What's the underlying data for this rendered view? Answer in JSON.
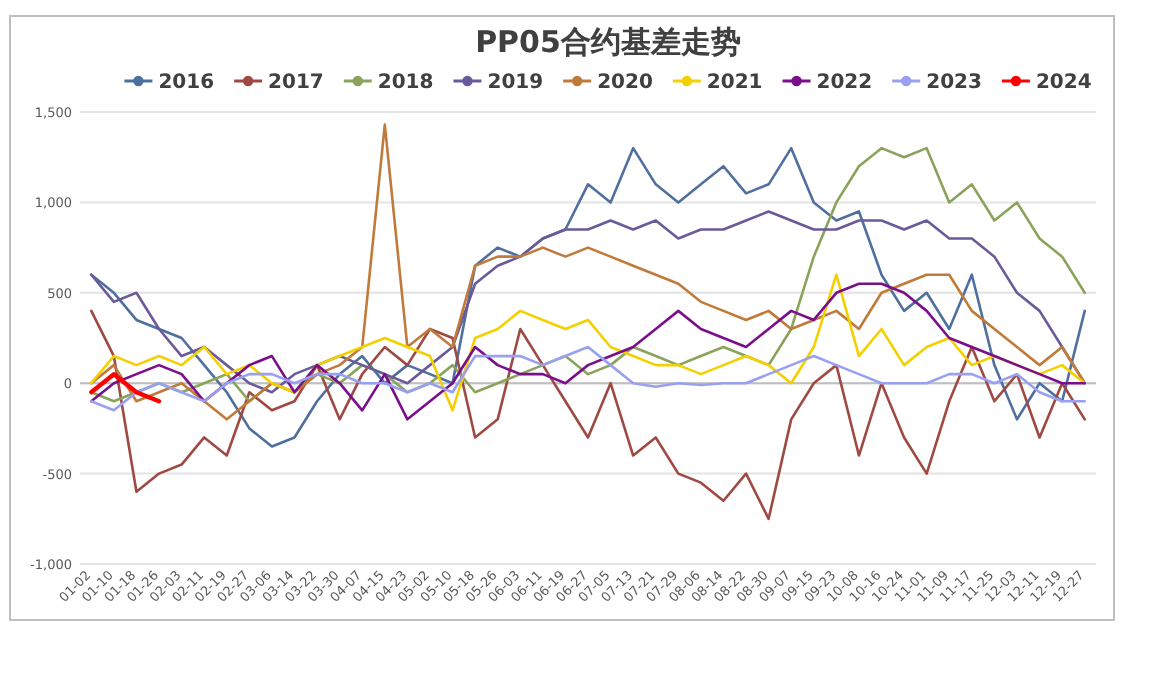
{
  "chart_data": {
    "type": "line",
    "title": "PP05合约基差走势",
    "legend": "top",
    "grid": "y",
    "marker": "none",
    "line_style": "solid",
    "categories": [
      "01-02",
      "01-10",
      "01-18",
      "01-26",
      "02-03",
      "02-11",
      "02-19",
      "02-27",
      "03-06",
      "03-14",
      "03-22",
      "03-30",
      "04-07",
      "04-15",
      "04-23",
      "05-02",
      "05-10",
      "05-18",
      "05-26",
      "06-03",
      "06-11",
      "06-19",
      "06-27",
      "07-05",
      "07-13",
      "07-21",
      "07-29",
      "08-06",
      "08-14",
      "08-22",
      "08-30",
      "09-07",
      "09-15",
      "09-23",
      "10-08",
      "10-16",
      "10-24",
      "11-01",
      "11-09",
      "11-17",
      "11-25",
      "12-03",
      "12-11",
      "12-19",
      "12-27"
    ],
    "ylim": [
      -1000,
      1500
    ],
    "yticks": [
      {
        "value": -1000,
        "label": "-1,000"
      },
      -500,
      0,
      500,
      {
        "value": 1000,
        "label": "1,000"
      },
      {
        "value": 1500,
        "label": "1,500"
      }
    ],
    "series": [
      {
        "name": "2016",
        "color": "#4f6f9f",
        "values": [
          600,
          500,
          350,
          300,
          250,
          100,
          -50,
          -250,
          -350,
          -300,
          -100,
          50,
          150,
          0,
          100,
          50,
          0,
          650,
          750,
          700,
          800,
          850,
          1100,
          1000,
          1300,
          1100,
          1000,
          1100,
          1200,
          1050,
          1100,
          1300,
          1000,
          900,
          950,
          600,
          400,
          500,
          300,
          600,
          100,
          -200,
          0,
          -100,
          400
        ]
      },
      {
        "name": "2017",
        "color": "#9e4a42",
        "values": [
          400,
          150,
          -600,
          -500,
          -450,
          -300,
          -400,
          -50,
          -150,
          -100,
          100,
          -200,
          50,
          200,
          100,
          300,
          250,
          -300,
          -200,
          300,
          100,
          -100,
          -300,
          0,
          -400,
          -300,
          -500,
          -550,
          -650,
          -500,
          -750,
          -200,
          0,
          100,
          -400,
          0,
          -300,
          -500,
          -100,
          200,
          -100,
          50,
          -300,
          0,
          -200
        ]
      },
      {
        "name": "2018",
        "color": "#8aa35a",
        "values": [
          -50,
          -100,
          -50,
          0,
          -50,
          0,
          50,
          -100,
          0,
          -50,
          50,
          0,
          100,
          50,
          -50,
          0,
          100,
          -50,
          0,
          50,
          100,
          150,
          50,
          100,
          200,
          150,
          100,
          150,
          200,
          150,
          100,
          300,
          700,
          1000,
          1200,
          1300,
          1250,
          1300,
          1000,
          1100,
          900,
          1000,
          800,
          700,
          500
        ]
      },
      {
        "name": "2019",
        "color": "#6a5a9a",
        "values": [
          600,
          450,
          500,
          300,
          150,
          200,
          100,
          0,
          -50,
          50,
          100,
          150,
          100,
          50,
          0,
          100,
          200,
          550,
          650,
          700,
          800,
          850,
          850,
          900,
          850,
          900,
          800,
          850,
          850,
          900,
          950,
          900,
          850,
          850,
          900,
          900,
          850,
          900,
          800,
          800,
          700,
          500,
          400,
          200,
          0
        ]
      },
      {
        "name": "2020",
        "color": "#c07a3a",
        "values": [
          0,
          100,
          -100,
          -50,
          0,
          -100,
          -200,
          -100,
          0,
          -50,
          50,
          100,
          200,
          1430,
          200,
          300,
          200,
          650,
          700,
          700,
          750,
          700,
          750,
          700,
          650,
          600,
          550,
          450,
          400,
          350,
          400,
          300,
          350,
          400,
          300,
          500,
          550,
          600,
          600,
          400,
          300,
          200,
          100,
          200,
          0
        ]
      },
      {
        "name": "2021",
        "color": "#f5d000",
        "values": [
          0,
          150,
          100,
          150,
          100,
          200,
          50,
          100,
          0,
          -50,
          100,
          150,
          200,
          250,
          200,
          150,
          -150,
          250,
          300,
          400,
          350,
          300,
          350,
          200,
          150,
          100,
          100,
          50,
          100,
          150,
          100,
          0,
          200,
          600,
          150,
          300,
          100,
          200,
          250,
          100,
          150,
          100,
          50,
          100,
          0
        ]
      },
      {
        "name": "2022",
        "color": "#7a0f8a",
        "values": [
          -100,
          0,
          50,
          100,
          50,
          -100,
          0,
          100,
          150,
          -50,
          100,
          0,
          -150,
          50,
          -200,
          -100,
          0,
          200,
          100,
          50,
          50,
          0,
          100,
          150,
          200,
          300,
          400,
          300,
          250,
          200,
          300,
          400,
          350,
          500,
          550,
          550,
          500,
          400,
          250,
          200,
          150,
          100,
          50,
          0,
          0
        ]
      },
      {
        "name": "2023",
        "color": "#9aa0f0",
        "values": [
          -100,
          -150,
          -50,
          0,
          -50,
          -100,
          0,
          50,
          50,
          0,
          50,
          50,
          0,
          0,
          -50,
          0,
          -50,
          150,
          150,
          150,
          100,
          150,
          200,
          100,
          0,
          -20,
          0,
          -10,
          0,
          0,
          50,
          100,
          150,
          100,
          50,
          0,
          0,
          0,
          50,
          50,
          0,
          50,
          -50,
          -100,
          -100
        ]
      },
      {
        "name": "2024",
        "color": "#ff0000",
        "values": [
          -50,
          50,
          -50,
          -100,
          null,
          null,
          null,
          null,
          null,
          null,
          null,
          null,
          null,
          null,
          null,
          null,
          null,
          null,
          null,
          null,
          null,
          null,
          null,
          null,
          null,
          null,
          null,
          null,
          null,
          null,
          null,
          null,
          null,
          null,
          null,
          null,
          null,
          null,
          null,
          null,
          null,
          null,
          null,
          null,
          null
        ]
      }
    ]
  }
}
